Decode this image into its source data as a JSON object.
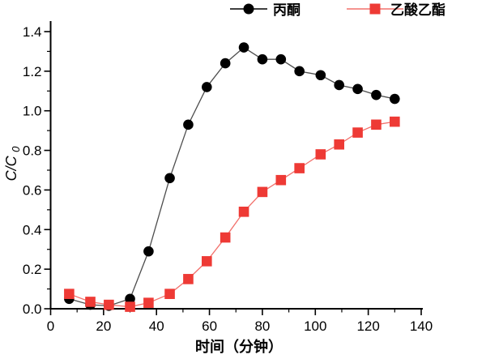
{
  "chart_data": {
    "type": "line",
    "title": "",
    "xlabel": "时间（分钟）",
    "ylabel": "C/C0",
    "ylabel_main": "C/C",
    "ylabel_sub": "0",
    "xlim": [
      0,
      140
    ],
    "ylim": [
      0,
      1.4
    ],
    "x_major_ticks": [
      0,
      20,
      40,
      60,
      80,
      100,
      120,
      140
    ],
    "x_minor_ticks": [
      10,
      30,
      50,
      70,
      90,
      110,
      130
    ],
    "y_major_ticks": [
      0.0,
      0.2,
      0.4,
      0.6,
      0.8,
      1.0,
      1.2,
      1.4
    ],
    "y_minor_ticks": [
      0.1,
      0.3,
      0.5,
      0.7,
      0.9,
      1.1,
      1.3
    ],
    "y_tick_decimals": 1,
    "grid": false,
    "legend_position": "top-center",
    "x": [
      7,
      15,
      22,
      30,
      37,
      45,
      52,
      59,
      66,
      73,
      80,
      87,
      94,
      102,
      109,
      116,
      123,
      130
    ],
    "series": [
      {
        "name": "丙酮",
        "marker": "circle",
        "color": "#000000",
        "line_color": "#4d4d4d",
        "values": [
          0.05,
          0.02,
          0.015,
          0.05,
          0.29,
          0.66,
          0.93,
          1.12,
          1.24,
          1.32,
          1.26,
          1.26,
          1.2,
          1.18,
          1.13,
          1.11,
          1.08,
          1.06
        ]
      },
      {
        "name": "乙酸乙酯",
        "marker": "square",
        "color": "#ee3a35",
        "line_color": "#f2706b",
        "values": [
          0.075,
          0.035,
          0.02,
          0.01,
          0.03,
          0.075,
          0.15,
          0.24,
          0.36,
          0.49,
          0.59,
          0.65,
          0.71,
          0.78,
          0.83,
          0.89,
          0.93,
          0.945
        ]
      }
    ]
  }
}
